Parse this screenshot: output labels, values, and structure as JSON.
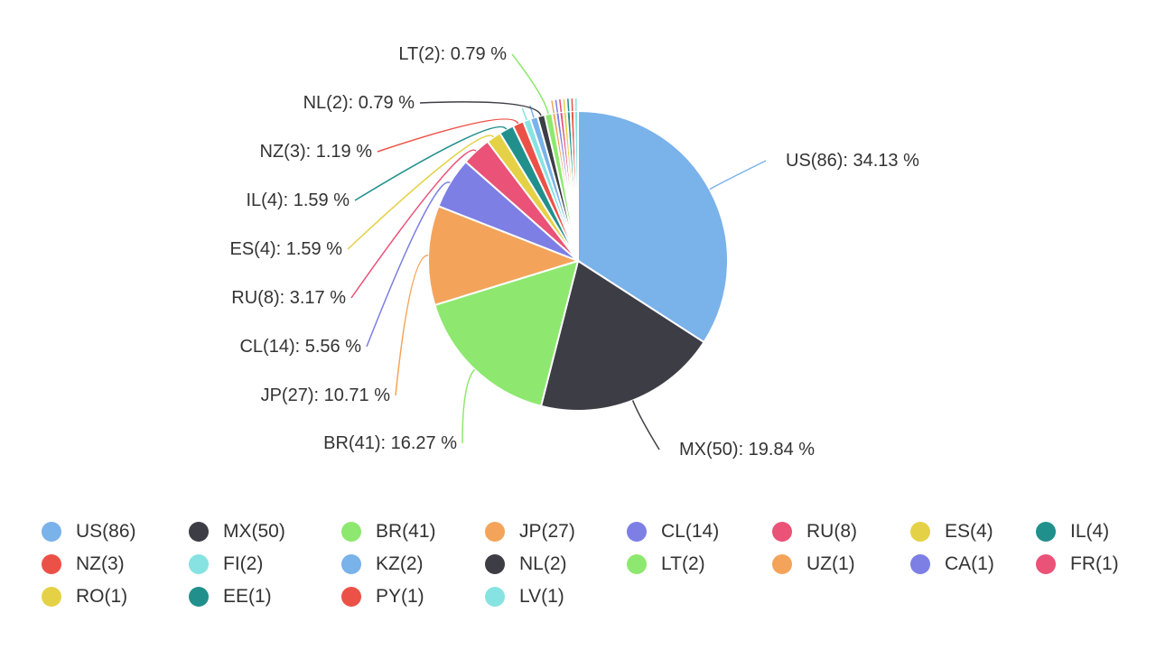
{
  "chart_data": {
    "type": "pie",
    "label_format": "{name}({value}): {percent} %",
    "slices": [
      {
        "name": "US",
        "value": 86,
        "percent": "34.13",
        "color": "#7ab2ea",
        "label_side": "right"
      },
      {
        "name": "MX",
        "value": 50,
        "percent": "19.84",
        "color": "#3d3d45",
        "label_side": "right"
      },
      {
        "name": "BR",
        "value": 41,
        "percent": "16.27",
        "color": "#8ee86f",
        "label_side": "left"
      },
      {
        "name": "JP",
        "value": 27,
        "percent": "10.71",
        "color": "#f3a45a",
        "label_side": "left"
      },
      {
        "name": "CL",
        "value": 14,
        "percent": "5.56",
        "color": "#7d7fe5",
        "label_side": "left"
      },
      {
        "name": "RU",
        "value": 8,
        "percent": "3.17",
        "color": "#ea5277",
        "label_side": "left"
      },
      {
        "name": "ES",
        "value": 4,
        "percent": "1.59",
        "color": "#e5d146",
        "label_side": "left"
      },
      {
        "name": "IL",
        "value": 4,
        "percent": "1.59",
        "color": "#21908d",
        "label_side": "left"
      },
      {
        "name": "NZ",
        "value": 3,
        "percent": "1.19",
        "color": "#ec5147",
        "label_side": "left"
      },
      {
        "name": "FI",
        "value": 2,
        "percent": "0.79",
        "color": "#86e3e1",
        "label_side": "none"
      },
      {
        "name": "KZ",
        "value": 2,
        "percent": "0.79",
        "color": "#7ab2ea",
        "label_side": "none"
      },
      {
        "name": "NL",
        "value": 2,
        "percent": "0.79",
        "color": "#3d3d45",
        "label_side": "left"
      },
      {
        "name": "LT",
        "value": 2,
        "percent": "0.79",
        "color": "#8ee86f",
        "label_side": "left"
      },
      {
        "name": "UZ",
        "value": 1,
        "percent": "0.40",
        "color": "#f3a45a",
        "label_side": "none"
      },
      {
        "name": "CA",
        "value": 1,
        "percent": "0.40",
        "color": "#7d7fe5",
        "label_side": "none"
      },
      {
        "name": "FR",
        "value": 1,
        "percent": "0.40",
        "color": "#ea5277",
        "label_side": "none"
      },
      {
        "name": "RO",
        "value": 1,
        "percent": "0.40",
        "color": "#e5d146",
        "label_side": "none"
      },
      {
        "name": "EE",
        "value": 1,
        "percent": "0.40",
        "color": "#21908d",
        "label_side": "none"
      },
      {
        "name": "PY",
        "value": 1,
        "percent": "0.40",
        "color": "#ec5147",
        "label_side": "none"
      },
      {
        "name": "LV",
        "value": 1,
        "percent": "0.40",
        "color": "#86e3e1",
        "label_side": "none"
      }
    ],
    "legend": {
      "placement": "bottom",
      "items": [
        "US(86)",
        "MX(50)",
        "BR(41)",
        "JP(27)",
        "CL(14)",
        "RU(8)",
        "ES(4)",
        "IL(4)",
        "NZ(3)",
        "FI(2)",
        "KZ(2)",
        "NL(2)",
        "LT(2)",
        "UZ(1)",
        "CA(1)",
        "FR(1)",
        "RO(1)",
        "EE(1)",
        "PY(1)",
        "LV(1)"
      ]
    }
  }
}
